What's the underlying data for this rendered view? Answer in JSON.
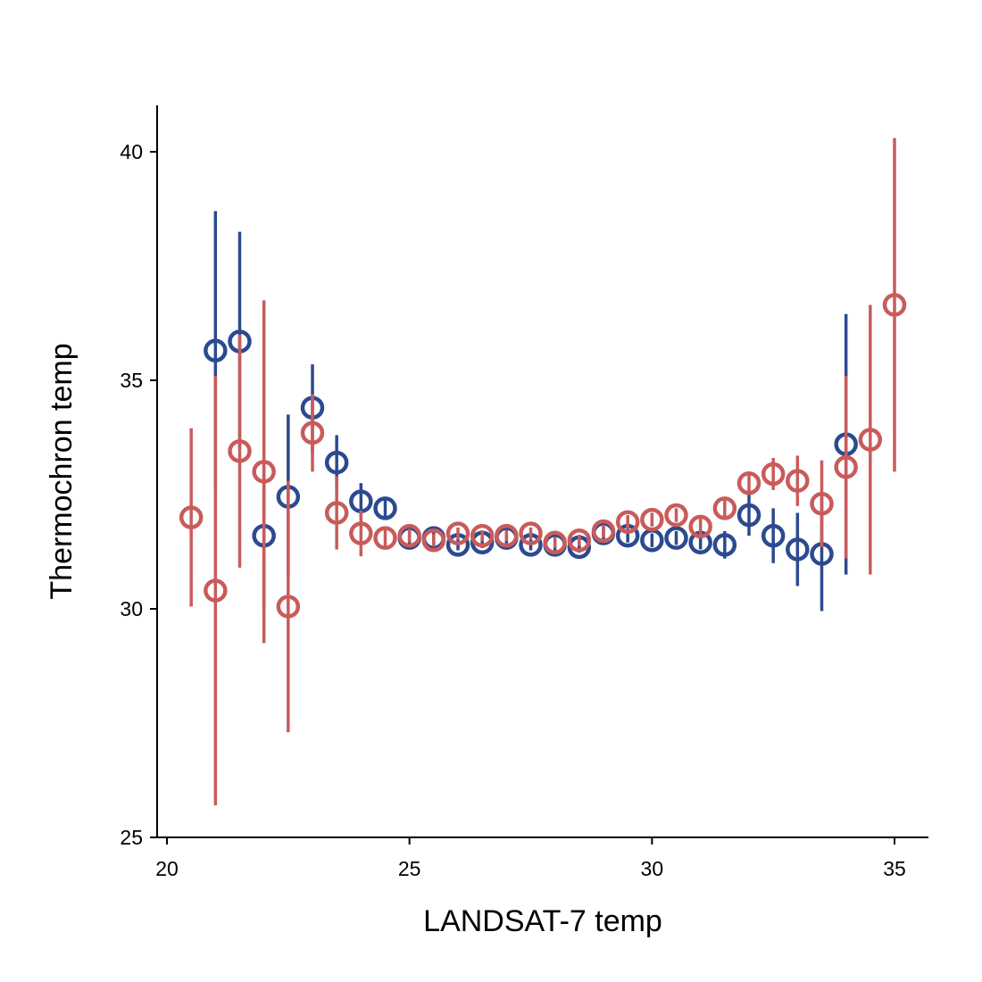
{
  "chart_data": {
    "type": "scatter",
    "xlabel": "LANDSAT-7 temp",
    "ylabel": "Thermochron temp",
    "xlim": [
      19.8,
      35.7
    ],
    "ylim": [
      25,
      41
    ],
    "xticks": [
      20,
      25,
      30,
      35
    ],
    "yticks": [
      25,
      30,
      35,
      40
    ],
    "grid": false,
    "series": [
      {
        "color": "#2b4a8f",
        "points": [
          {
            "x": 21.0,
            "y": 35.65,
            "lo": 32.6,
            "hi": 38.7
          },
          {
            "x": 21.5,
            "y": 35.85,
            "lo": 33.5,
            "hi": 38.25
          },
          {
            "x": 22.0,
            "y": 31.6,
            "lo": 30.0,
            "hi": 33.1
          },
          {
            "x": 22.5,
            "y": 32.45,
            "lo": 30.7,
            "hi": 34.25
          },
          {
            "x": 23.0,
            "y": 34.4,
            "lo": 33.4,
            "hi": 35.35
          },
          {
            "x": 23.5,
            "y": 33.2,
            "lo": 32.6,
            "hi": 33.8
          },
          {
            "x": 24.0,
            "y": 32.35,
            "lo": 32.0,
            "hi": 32.75
          },
          {
            "x": 24.5,
            "y": 32.2,
            "lo": 31.95,
            "hi": 32.45
          },
          {
            "x": 25.0,
            "y": 31.55,
            "lo": 31.4,
            "hi": 31.7
          },
          {
            "x": 25.5,
            "y": 31.55,
            "lo": 31.4,
            "hi": 31.7
          },
          {
            "x": 26.0,
            "y": 31.4,
            "lo": 31.28,
            "hi": 31.52
          },
          {
            "x": 26.5,
            "y": 31.45,
            "lo": 31.33,
            "hi": 31.57
          },
          {
            "x": 27.0,
            "y": 31.55,
            "lo": 31.43,
            "hi": 31.67
          },
          {
            "x": 27.5,
            "y": 31.4,
            "lo": 31.28,
            "hi": 31.52
          },
          {
            "x": 28.0,
            "y": 31.4,
            "lo": 31.28,
            "hi": 31.52
          },
          {
            "x": 28.5,
            "y": 31.35,
            "lo": 31.23,
            "hi": 31.47
          },
          {
            "x": 29.0,
            "y": 31.65,
            "lo": 31.5,
            "hi": 31.8
          },
          {
            "x": 29.5,
            "y": 31.6,
            "lo": 31.45,
            "hi": 31.75
          },
          {
            "x": 30.0,
            "y": 31.5,
            "lo": 31.35,
            "hi": 31.65
          },
          {
            "x": 30.5,
            "y": 31.55,
            "lo": 31.4,
            "hi": 31.7
          },
          {
            "x": 31.0,
            "y": 31.45,
            "lo": 31.3,
            "hi": 31.6
          },
          {
            "x": 31.5,
            "y": 31.4,
            "lo": 31.1,
            "hi": 31.7
          },
          {
            "x": 32.0,
            "y": 32.05,
            "lo": 31.6,
            "hi": 32.5
          },
          {
            "x": 32.5,
            "y": 31.6,
            "lo": 31.0,
            "hi": 32.2
          },
          {
            "x": 33.0,
            "y": 31.3,
            "lo": 30.5,
            "hi": 32.1
          },
          {
            "x": 33.5,
            "y": 31.2,
            "lo": 29.95,
            "hi": 32.45
          },
          {
            "x": 34.0,
            "y": 33.6,
            "lo": 30.75,
            "hi": 36.45
          }
        ]
      },
      {
        "color": "#c95b5b",
        "points": [
          {
            "x": 20.5,
            "y": 32.0,
            "lo": 30.05,
            "hi": 33.95
          },
          {
            "x": 21.0,
            "y": 30.4,
            "lo": 25.7,
            "hi": 35.1
          },
          {
            "x": 21.5,
            "y": 33.45,
            "lo": 30.9,
            "hi": 36.0
          },
          {
            "x": 22.0,
            "y": 33.0,
            "lo": 29.25,
            "hi": 36.75
          },
          {
            "x": 22.5,
            "y": 30.05,
            "lo": 27.3,
            "hi": 32.8
          },
          {
            "x": 23.0,
            "y": 33.85,
            "lo": 33.0,
            "hi": 34.7
          },
          {
            "x": 23.5,
            "y": 32.1,
            "lo": 31.3,
            "hi": 32.9
          },
          {
            "x": 24.0,
            "y": 31.65,
            "lo": 31.15,
            "hi": 32.15
          },
          {
            "x": 24.5,
            "y": 31.55,
            "lo": 31.3,
            "hi": 31.8
          },
          {
            "x": 25.0,
            "y": 31.6,
            "lo": 31.45,
            "hi": 31.75
          },
          {
            "x": 25.5,
            "y": 31.5,
            "lo": 31.36,
            "hi": 31.64
          },
          {
            "x": 26.0,
            "y": 31.65,
            "lo": 31.52,
            "hi": 31.78
          },
          {
            "x": 26.5,
            "y": 31.6,
            "lo": 31.48,
            "hi": 31.72
          },
          {
            "x": 27.0,
            "y": 31.6,
            "lo": 31.48,
            "hi": 31.72
          },
          {
            "x": 27.5,
            "y": 31.65,
            "lo": 31.52,
            "hi": 31.78
          },
          {
            "x": 28.0,
            "y": 31.45,
            "lo": 31.33,
            "hi": 31.57
          },
          {
            "x": 28.5,
            "y": 31.5,
            "lo": 31.38,
            "hi": 31.62
          },
          {
            "x": 29.0,
            "y": 31.7,
            "lo": 31.56,
            "hi": 31.84
          },
          {
            "x": 29.5,
            "y": 31.9,
            "lo": 31.75,
            "hi": 32.05
          },
          {
            "x": 30.0,
            "y": 31.95,
            "lo": 31.8,
            "hi": 32.1
          },
          {
            "x": 30.5,
            "y": 32.05,
            "lo": 31.9,
            "hi": 32.2
          },
          {
            "x": 31.0,
            "y": 31.8,
            "lo": 31.6,
            "hi": 32.0
          },
          {
            "x": 31.5,
            "y": 32.2,
            "lo": 32.0,
            "hi": 32.4
          },
          {
            "x": 32.0,
            "y": 32.75,
            "lo": 32.5,
            "hi": 33.0
          },
          {
            "x": 32.5,
            "y": 32.95,
            "lo": 32.6,
            "hi": 33.3
          },
          {
            "x": 33.0,
            "y": 32.8,
            "lo": 32.25,
            "hi": 33.35
          },
          {
            "x": 33.5,
            "y": 32.3,
            "lo": 31.35,
            "hi": 33.25
          },
          {
            "x": 34.0,
            "y": 33.1,
            "lo": 31.1,
            "hi": 35.1
          },
          {
            "x": 34.5,
            "y": 33.7,
            "lo": 30.75,
            "hi": 36.65
          },
          {
            "x": 35.0,
            "y": 36.65,
            "lo": 33.0,
            "hi": 40.3
          }
        ]
      }
    ]
  }
}
